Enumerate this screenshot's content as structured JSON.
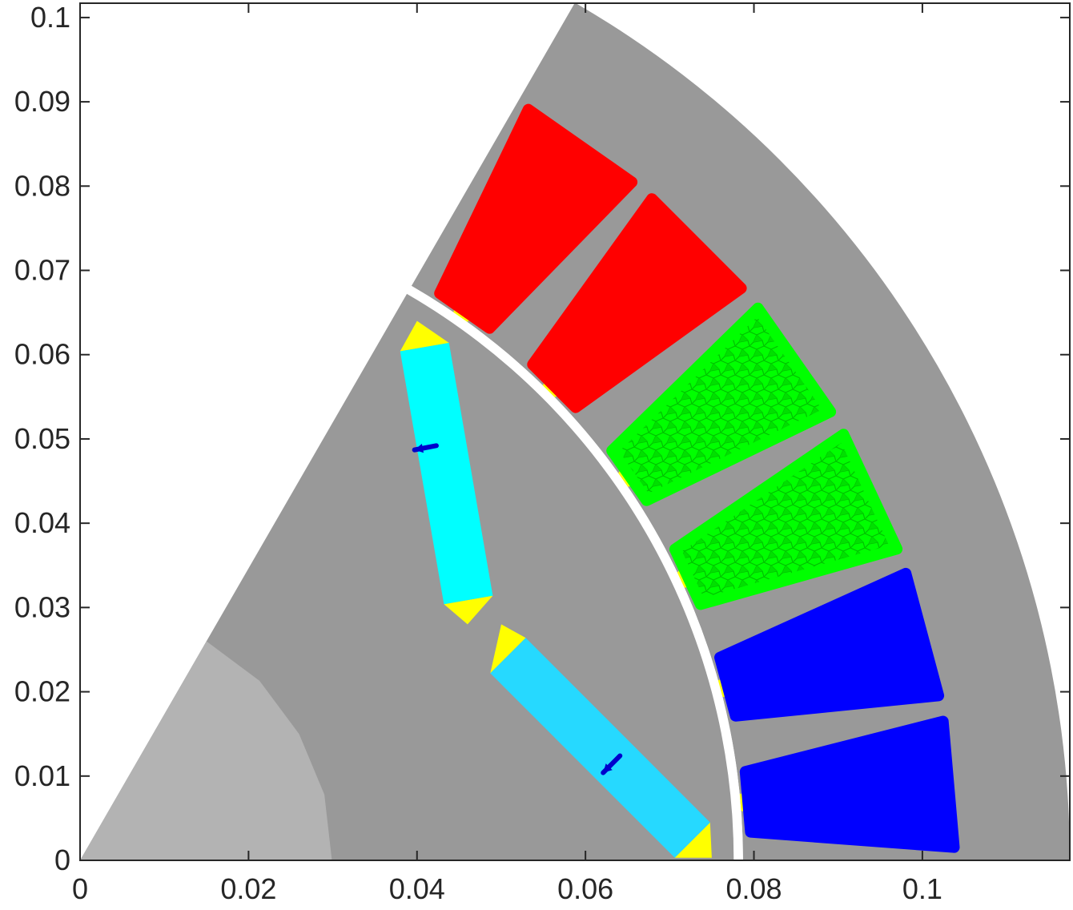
{
  "chart_data": {
    "type": "other",
    "title": "",
    "xlabel": "",
    "ylabel": "",
    "xlim": [
      0,
      0.1175
    ],
    "ylim": [
      0,
      0.1017
    ],
    "x_ticks": [
      {
        "value": 0,
        "label": "0"
      },
      {
        "value": 0.02,
        "label": "0.02"
      },
      {
        "value": 0.04,
        "label": "0.04"
      },
      {
        "value": 0.06,
        "label": "0.06"
      },
      {
        "value": 0.08,
        "label": "0.08"
      },
      {
        "value": 0.1,
        "label": "0.1"
      }
    ],
    "y_ticks": [
      {
        "value": 0,
        "label": "0"
      },
      {
        "value": 0.01,
        "label": "0.01"
      },
      {
        "value": 0.02,
        "label": "0.02"
      },
      {
        "value": 0.03,
        "label": "0.03"
      },
      {
        "value": 0.04,
        "label": "0.04"
      },
      {
        "value": 0.05,
        "label": "0.05"
      },
      {
        "value": 0.06,
        "label": "0.06"
      },
      {
        "value": 0.07,
        "label": "0.07"
      },
      {
        "value": 0.08,
        "label": "0.08"
      },
      {
        "value": 0.09,
        "label": "0.09"
      },
      {
        "value": 0.1,
        "label": "0.1"
      }
    ],
    "colors": {
      "stator_core": "#999999",
      "rotor_core": "#999999",
      "shaft": "#b3b3b3",
      "air_gap": "#ffffff",
      "phase_a": "#ff0000",
      "phase_b": "#00ff00",
      "phase_c": "#0000ff",
      "magnet_1": "#00ffff",
      "magnet_2": "#26d9ff",
      "flux_barrier": "#ffff00",
      "magnetization_arrow": "#0000cc",
      "axes": "#262626"
    },
    "regions": {
      "stator_inner_radius": 0.0787,
      "stator_outer_radius": 0.1175,
      "rotor_outer_radius": 0.0776,
      "shaft_outline": [
        [
          0,
          0
        ],
        [
          0.015,
          0.026
        ],
        [
          0.0213,
          0.0213
        ],
        [
          0.026,
          0.015
        ],
        [
          0.029,
          0.0078
        ],
        [
          0.0299,
          0
        ]
      ],
      "sector_angle_deg": 60,
      "slots": [
        {
          "phase": "A",
          "angle_deg": 55
        },
        {
          "phase": "A",
          "angle_deg": 45
        },
        {
          "phase": "B",
          "angle_deg": 35
        },
        {
          "phase": "B",
          "angle_deg": 25
        },
        {
          "phase": "C",
          "angle_deg": 15
        },
        {
          "phase": "C",
          "angle_deg": 5
        }
      ],
      "slot_radial_range": [
        0.0796,
        0.1035
      ],
      "magnets": [
        {
          "name": "magnet_1",
          "corners": [
            [
              0.038,
              0.0604
            ],
            [
              0.0438,
              0.0614
            ],
            [
              0.049,
              0.0314
            ],
            [
              0.0432,
              0.0304
            ]
          ]
        },
        {
          "name": "magnet_2",
          "corners": [
            [
              0.0487,
              0.0222
            ],
            [
              0.0529,
              0.0264
            ],
            [
              0.0748,
              0.0045
            ],
            [
              0.0706,
              0.0003
            ]
          ]
        }
      ],
      "barriers": [
        [
          [
            0.038,
            0.0604
          ],
          [
            0.0438,
            0.0614
          ],
          [
            0.04,
            0.064
          ]
        ],
        [
          [
            0.0432,
            0.0304
          ],
          [
            0.049,
            0.0314
          ],
          [
            0.046,
            0.028
          ]
        ],
        [
          [
            0.0487,
            0.0222
          ],
          [
            0.0529,
            0.0264
          ],
          [
            0.05,
            0.028
          ]
        ],
        [
          [
            0.0706,
            0.0003
          ],
          [
            0.0748,
            0.0045
          ],
          [
            0.075,
            0.0003
          ]
        ]
      ],
      "magnetization_arrows": [
        {
          "from": [
            0.0423,
            0.0492
          ],
          "to": [
            0.0397,
            0.0487
          ]
        },
        {
          "from": [
            0.0641,
            0.0124
          ],
          "to": [
            0.0621,
            0.0104
          ]
        }
      ]
    }
  }
}
